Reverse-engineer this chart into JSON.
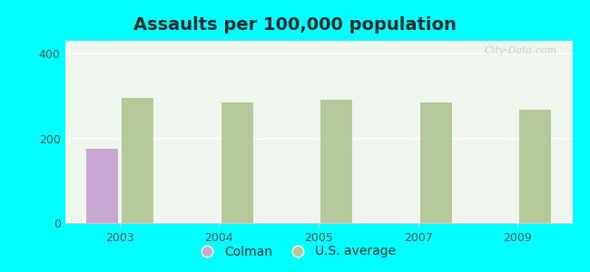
{
  "title": "Assaults per 100,000 population",
  "title_color": "#2d2d2d",
  "background_color": "#00FFFF",
  "plot_bg_top": "#e8f5e8",
  "plot_bg_bottom": "#f0faf0",
  "years": [
    "2003",
    "2004",
    "2005",
    "2007",
    "2009"
  ],
  "colman_values": [
    176,
    0,
    0,
    0,
    0
  ],
  "us_avg_values": [
    295,
    285,
    290,
    285,
    268
  ],
  "colman_color": "#c9a8d4",
  "us_avg_color": "#b5c99a",
  "ylim": [
    0,
    430
  ],
  "yticks": [
    0,
    200,
    400
  ],
  "bar_width": 0.32,
  "title_fontsize": 14,
  "tick_fontsize": 9,
  "legend_fontsize": 10,
  "watermark_text": "City-Data.com",
  "watermark_color": "#aaaaaa",
  "watermark_alpha": 0.55,
  "grid_color": "#ffffff",
  "spine_color": "#cccccc"
}
